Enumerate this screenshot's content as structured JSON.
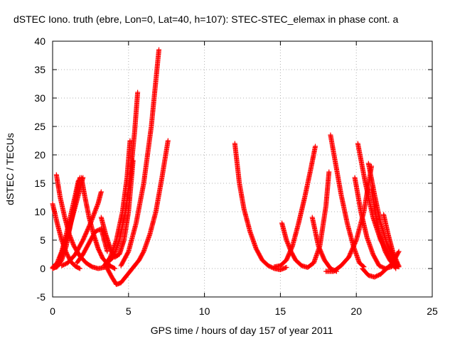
{
  "chart_data": {
    "type": "scatter",
    "title": "dSTEC Iono. truth (ebre, Lon=0, Lat=40, h=107): STEC-STEC_elemax in phase cont. a",
    "xlabel": "GPS time / hours of day 157 of year 2011",
    "ylabel": "dSTEC  / TECUs",
    "xlim": [
      0,
      25
    ],
    "ylim": [
      -5,
      40
    ],
    "xticks": [
      0,
      5,
      10,
      15,
      20,
      25
    ],
    "yticks": [
      -5,
      0,
      5,
      10,
      15,
      20,
      25,
      30,
      35,
      40
    ],
    "xtick_labels": [
      "0",
      "5",
      "10",
      "15",
      "20",
      "25"
    ],
    "ytick_labels": [
      "-5",
      "0",
      "5",
      "10",
      "15",
      "20",
      "25",
      "30",
      "35",
      "40"
    ],
    "grid": true,
    "marker": "plus",
    "color": "#ff0000",
    "series": [
      {
        "x": [
          0.0,
          0.3,
          0.6,
          0.9,
          1.2,
          1.5,
          1.8
        ],
        "y": [
          11.4,
          8.0,
          5.0,
          2.8,
          1.2,
          0.4,
          0.0
        ]
      },
      {
        "x": [
          0.25,
          0.5,
          0.8,
          1.1,
          1.4,
          1.8,
          2.2,
          2.6,
          3.0,
          3.4,
          3.8
        ],
        "y": [
          16.5,
          12.5,
          9.0,
          6.0,
          4.0,
          2.2,
          1.0,
          0.3,
          0.0,
          0.2,
          0.5
        ]
      },
      {
        "x": [
          0.0,
          0.3,
          0.6,
          0.9,
          1.2,
          1.5,
          1.8
        ],
        "y": [
          0.0,
          0.3,
          1.5,
          4.0,
          8.0,
          12.0,
          16.0
        ]
      },
      {
        "x": [
          0.0,
          0.3,
          0.6,
          0.9,
          1.2,
          1.5,
          1.7
        ],
        "y": [
          0.2,
          1.0,
          3.0,
          6.0,
          9.5,
          13.0,
          15.5
        ]
      },
      {
        "x": [
          0.5,
          0.8,
          1.1,
          1.4,
          1.7,
          2.0
        ],
        "y": [
          2.0,
          4.0,
          7.0,
          10.0,
          13.0,
          16.0
        ]
      },
      {
        "x": [
          1.9,
          2.1,
          2.4,
          2.7,
          3.0,
          3.3,
          3.7,
          4.1
        ],
        "y": [
          16.0,
          13.0,
          9.0,
          6.0,
          3.5,
          1.8,
          0.6,
          0.0
        ]
      },
      {
        "x": [
          0.6,
          1.0,
          1.5,
          2.0,
          2.5,
          3.0,
          3.2
        ],
        "y": [
          0.5,
          1.0,
          2.5,
          5.0,
          8.0,
          11.5,
          13.5
        ]
      },
      {
        "x": [
          1.6,
          2.0,
          2.4,
          2.8,
          3.2,
          3.6
        ],
        "y": [
          1.0,
          2.5,
          4.5,
          6.5,
          7.0,
          3.0
        ]
      },
      {
        "x": [
          3.2,
          3.5,
          3.8,
          4.1,
          4.4,
          4.7,
          5.0,
          5.3
        ],
        "y": [
          9.0,
          6.0,
          3.5,
          2.0,
          2.5,
          5.0,
          10.0,
          19.0
        ]
      },
      {
        "x": [
          3.6,
          4.0,
          4.4,
          4.8,
          5.1,
          5.4,
          5.6
        ],
        "y": [
          1.0,
          2.0,
          5.0,
          10.0,
          16.0,
          24.0,
          31.0
        ]
      },
      {
        "x": [
          3.4,
          3.8,
          4.2,
          4.6,
          4.9,
          5.1
        ],
        "y": [
          0.5,
          2.0,
          5.0,
          10.0,
          16.0,
          22.5
        ]
      },
      {
        "x": [
          3.6,
          3.9,
          4.2,
          4.5,
          4.8,
          5.1,
          5.4,
          5.7,
          6.0,
          6.4,
          6.8,
          7.2,
          7.6
        ],
        "y": [
          0.0,
          -1.5,
          -2.8,
          -2.5,
          -1.5,
          -0.5,
          0.5,
          1.5,
          3.0,
          6.0,
          10.0,
          16.0,
          22.5
        ]
      },
      {
        "x": [
          4.5,
          5.0,
          5.5,
          6.0,
          6.5,
          7.0
        ],
        "y": [
          0.5,
          3.0,
          8.0,
          15.0,
          25.0,
          38.5
        ]
      },
      {
        "x": [
          12.0,
          12.3,
          12.6,
          13.0,
          13.4,
          13.8,
          14.2,
          14.6,
          15.0,
          15.4
        ],
        "y": [
          22.0,
          15.0,
          10.5,
          6.5,
          3.5,
          1.5,
          0.5,
          0.0,
          -0.2,
          0.2
        ]
      },
      {
        "x": [
          14.6,
          15.0,
          15.4,
          15.8,
          16.2,
          16.6,
          17.0,
          17.3
        ],
        "y": [
          0.3,
          0.5,
          1.5,
          4.0,
          8.0,
          12.5,
          17.5,
          21.5
        ]
      },
      {
        "x": [
          15.1,
          15.4,
          15.7,
          16.0,
          16.4,
          16.8,
          17.2,
          17.6,
          18.0,
          18.2
        ],
        "y": [
          8.0,
          5.0,
          3.0,
          1.5,
          0.5,
          0.2,
          1.0,
          4.0,
          11.0,
          17.0
        ]
      },
      {
        "x": [
          17.1,
          17.5,
          17.9,
          18.3,
          18.7
        ],
        "y": [
          9.0,
          4.0,
          1.5,
          0.0,
          -0.5
        ]
      },
      {
        "x": [
          18.3,
          18.6,
          19.0,
          19.4,
          19.8,
          20.2,
          20.5
        ],
        "y": [
          23.5,
          19.0,
          13.0,
          8.0,
          4.0,
          1.0,
          0.3
        ]
      },
      {
        "x": [
          18.0,
          18.5,
          19.0,
          19.5,
          20.0,
          20.5,
          21.0
        ],
        "y": [
          -0.5,
          -0.5,
          0.5,
          2.0,
          5.0,
          10.0,
          18.0
        ]
      },
      {
        "x": [
          19.9,
          20.3,
          20.7,
          21.1,
          21.5,
          21.9,
          22.3,
          22.7
        ],
        "y": [
          16.0,
          10.0,
          5.5,
          2.5,
          0.5,
          0.0,
          0.3,
          1.0
        ]
      },
      {
        "x": [
          20.1,
          20.6,
          21.1,
          21.6,
          22.1,
          22.6
        ],
        "y": [
          22.0,
          15.0,
          9.0,
          5.0,
          2.5,
          0.0
        ]
      },
      {
        "x": [
          20.8,
          21.2,
          21.6,
          22.0,
          22.4,
          22.8
        ],
        "y": [
          18.5,
          13.0,
          8.0,
          4.5,
          2.0,
          0.5
        ]
      },
      {
        "x": [
          20.4,
          20.8,
          21.2,
          21.6,
          22.0,
          22.4,
          22.8
        ],
        "y": [
          0.0,
          -1.2,
          -1.5,
          -1.0,
          0.0,
          1.0,
          3.0
        ]
      },
      {
        "x": [
          21.0,
          21.3,
          21.6,
          21.9,
          22.2,
          22.5,
          22.8
        ],
        "y": [
          14.0,
          9.0,
          5.5,
          3.0,
          1.5,
          0.5,
          0.3
        ]
      },
      {
        "x": [
          21.8,
          22.1,
          22.4,
          22.7
        ],
        "y": [
          9.5,
          6.0,
          3.0,
          1.0
        ]
      }
    ]
  }
}
